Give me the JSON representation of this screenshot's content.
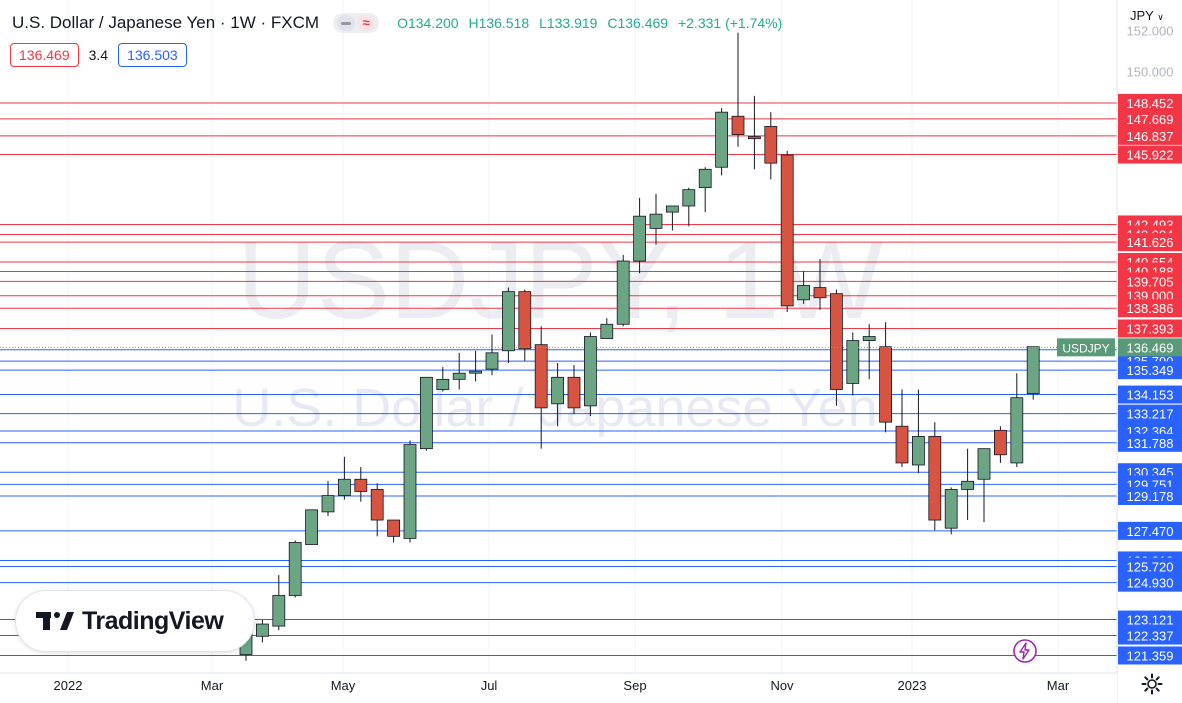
{
  "header": {
    "symbol": "U.S. Dollar / Japanese Yen · 1W · FXCM",
    "ohlc": {
      "o": "O134.200",
      "h": "H136.518",
      "l": "L133.919",
      "c": "C136.469",
      "chg": "+2.331 (+1.74%)"
    },
    "bid": "136.469",
    "spread": "3.4",
    "ask": "136.503"
  },
  "currency_label": "JPY",
  "watermark": {
    "line1": "USDJPY, 1W",
    "line2": "U.S. Dollar / Japanese Yen"
  },
  "logo": {
    "text": "TradingView"
  },
  "colors": {
    "up": "#6ba583",
    "down": "#d75442",
    "resistance": "#f23645",
    "support": "#2962ff",
    "current": "#5b9a78"
  },
  "icons": {
    "settings": "gear-icon",
    "alert": "lightning-icon",
    "dropdown": "chevron-down-icon"
  },
  "chart_data": {
    "type": "candlestick",
    "timeframe": "1W",
    "x_tick_labels": [
      "2022",
      "Mar",
      "May",
      "Jul",
      "Sep",
      "Nov",
      "2023",
      "Mar"
    ],
    "y_range": [
      120.5,
      153.5
    ],
    "y_tick_labels": [
      "152.000",
      "150.000"
    ],
    "resistance_levels": [
      148.452,
      147.669,
      146.837,
      145.922,
      142.493,
      142.004,
      141.626,
      140.654,
      140.188,
      139.705,
      139.0,
      138.386,
      137.393
    ],
    "support_levels": [
      136.353,
      135.79,
      135.349,
      134.153,
      133.217,
      132.364,
      131.788,
      130.345,
      129.751,
      129.178,
      127.47,
      126.019,
      125.72,
      124.93,
      123.121,
      122.337,
      121.359
    ],
    "resistance_labels": [
      "148.452",
      "147.669",
      "146.837",
      "145.922",
      "142.493",
      "142.004",
      "141.626",
      "140.654",
      "140.188",
      "139.705",
      "139.000",
      "138.386",
      "137.393"
    ],
    "support_labels": [
      "136.353",
      "135.790",
      "135.349",
      "134.153",
      "133.217",
      "132.364",
      "131.788",
      "130.345",
      "129.751",
      "129.178",
      "127.470",
      "126.019",
      "125.720",
      "124.930",
      "123.121",
      "122.337",
      "121.359"
    ],
    "current_price": 136.469,
    "current_price_label": "136.469",
    "current_symbol": "USDJPY",
    "candles": [
      [
        121.4,
        122.5,
        121.1,
        122.7
      ],
      [
        122.3,
        122.9,
        122.0,
        123.1
      ],
      [
        122.8,
        124.3,
        122.6,
        125.3
      ],
      [
        124.3,
        126.9,
        124.2,
        127.0
      ],
      [
        126.8,
        128.5,
        126.8,
        128.5
      ],
      [
        128.4,
        129.2,
        128.2,
        129.9
      ],
      [
        129.2,
        130.0,
        129.0,
        131.1
      ],
      [
        130.0,
        129.4,
        128.9,
        130.6
      ],
      [
        129.5,
        128.0,
        127.2,
        129.8
      ],
      [
        128.0,
        127.2,
        126.9,
        128.0
      ],
      [
        127.1,
        131.7,
        126.9,
        131.9
      ],
      [
        131.5,
        135.0,
        131.4,
        135.0
      ],
      [
        134.4,
        134.9,
        134.3,
        135.5
      ],
      [
        134.9,
        135.2,
        134.4,
        136.2
      ],
      [
        135.2,
        135.3,
        134.8,
        136.3
      ],
      [
        135.4,
        136.2,
        135.1,
        137.1
      ],
      [
        136.3,
        139.2,
        135.7,
        139.4
      ],
      [
        139.2,
        136.4,
        135.8,
        139.3
      ],
      [
        136.6,
        133.5,
        131.5,
        137.5
      ],
      [
        133.7,
        135.0,
        132.6,
        135.7
      ],
      [
        135.0,
        133.5,
        133.2,
        135.6
      ],
      [
        133.6,
        137.0,
        133.1,
        137.2
      ],
      [
        136.9,
        137.6,
        137.0,
        137.9
      ],
      [
        137.6,
        140.7,
        137.5,
        141.0
      ],
      [
        140.7,
        142.9,
        140.1,
        143.8
      ],
      [
        142.3,
        143.0,
        141.5,
        144.0
      ],
      [
        143.1,
        143.4,
        142.2,
        143.4
      ],
      [
        143.4,
        144.2,
        142.4,
        144.3
      ],
      [
        144.3,
        145.2,
        143.1,
        145.3
      ],
      [
        145.3,
        148.0,
        144.9,
        148.2
      ],
      [
        147.8,
        146.9,
        146.3,
        151.9
      ],
      [
        146.8,
        146.7,
        145.2,
        148.8
      ],
      [
        147.3,
        145.5,
        144.7,
        148.0
      ],
      [
        145.9,
        138.5,
        138.2,
        146.1
      ],
      [
        138.8,
        139.5,
        138.6,
        140.2
      ],
      [
        139.4,
        138.9,
        138.3,
        140.8
      ],
      [
        139.1,
        134.4,
        133.6,
        139.3
      ],
      [
        134.7,
        136.8,
        134.1,
        137.2
      ],
      [
        136.8,
        137.0,
        134.9,
        137.6
      ],
      [
        136.5,
        132.8,
        132.3,
        137.7
      ],
      [
        132.6,
        130.8,
        130.6,
        134.4
      ],
      [
        130.7,
        132.1,
        130.3,
        134.4
      ],
      [
        132.1,
        128.0,
        127.5,
        132.8
      ],
      [
        127.6,
        129.5,
        127.3,
        129.6
      ],
      [
        129.5,
        129.9,
        128.0,
        131.5
      ],
      [
        130.0,
        131.5,
        127.9,
        131.5
      ],
      [
        132.4,
        131.2,
        130.8,
        132.6
      ],
      [
        130.8,
        134.0,
        130.6,
        135.2
      ],
      [
        134.2,
        136.5,
        133.9,
        136.5
      ]
    ]
  }
}
